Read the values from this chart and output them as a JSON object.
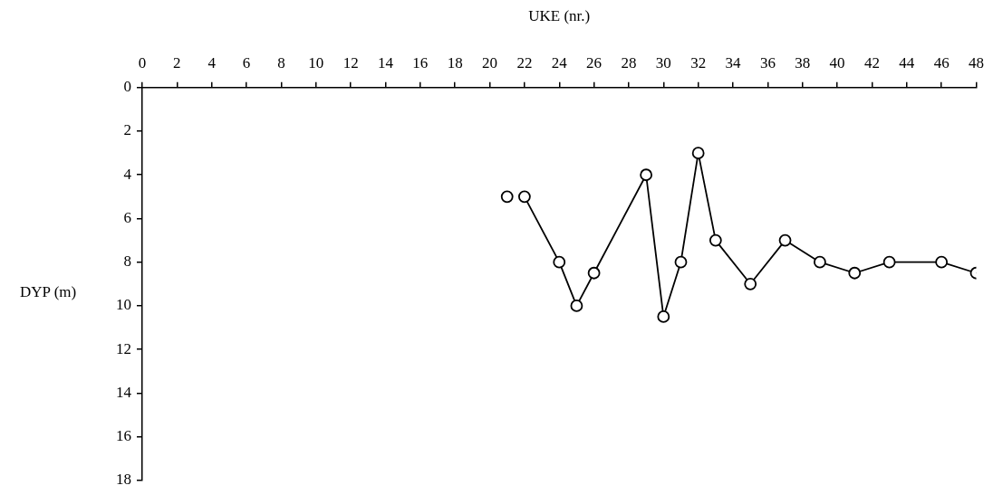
{
  "chart_data": {
    "type": "line",
    "xlabel": "UKE (nr.)",
    "ylabel": "DYP (m)",
    "xlim": [
      0,
      48
    ],
    "xticks": [
      0,
      2,
      4,
      6,
      8,
      10,
      12,
      14,
      16,
      18,
      20,
      22,
      24,
      26,
      28,
      30,
      32,
      34,
      36,
      38,
      40,
      42,
      44,
      46,
      48
    ],
    "ylim": [
      18,
      0
    ],
    "yticks": [
      0,
      2,
      4,
      6,
      8,
      10,
      12,
      14,
      16,
      18
    ],
    "grid": false,
    "legend": false,
    "marker": "circle",
    "line_style": "solid",
    "series": [
      {
        "color": "#000000",
        "x": [
          21
        ],
        "values": [
          5
        ]
      },
      {
        "color": "#000000",
        "x": [
          22,
          24,
          25,
          26,
          29,
          30,
          31,
          32,
          33,
          35,
          37,
          39,
          41,
          43,
          46,
          48
        ],
        "values": [
          5,
          8,
          10,
          8.5,
          4,
          10.5,
          8,
          3,
          7,
          9,
          7,
          8,
          8.5,
          8,
          8,
          8.5
        ]
      }
    ]
  }
}
